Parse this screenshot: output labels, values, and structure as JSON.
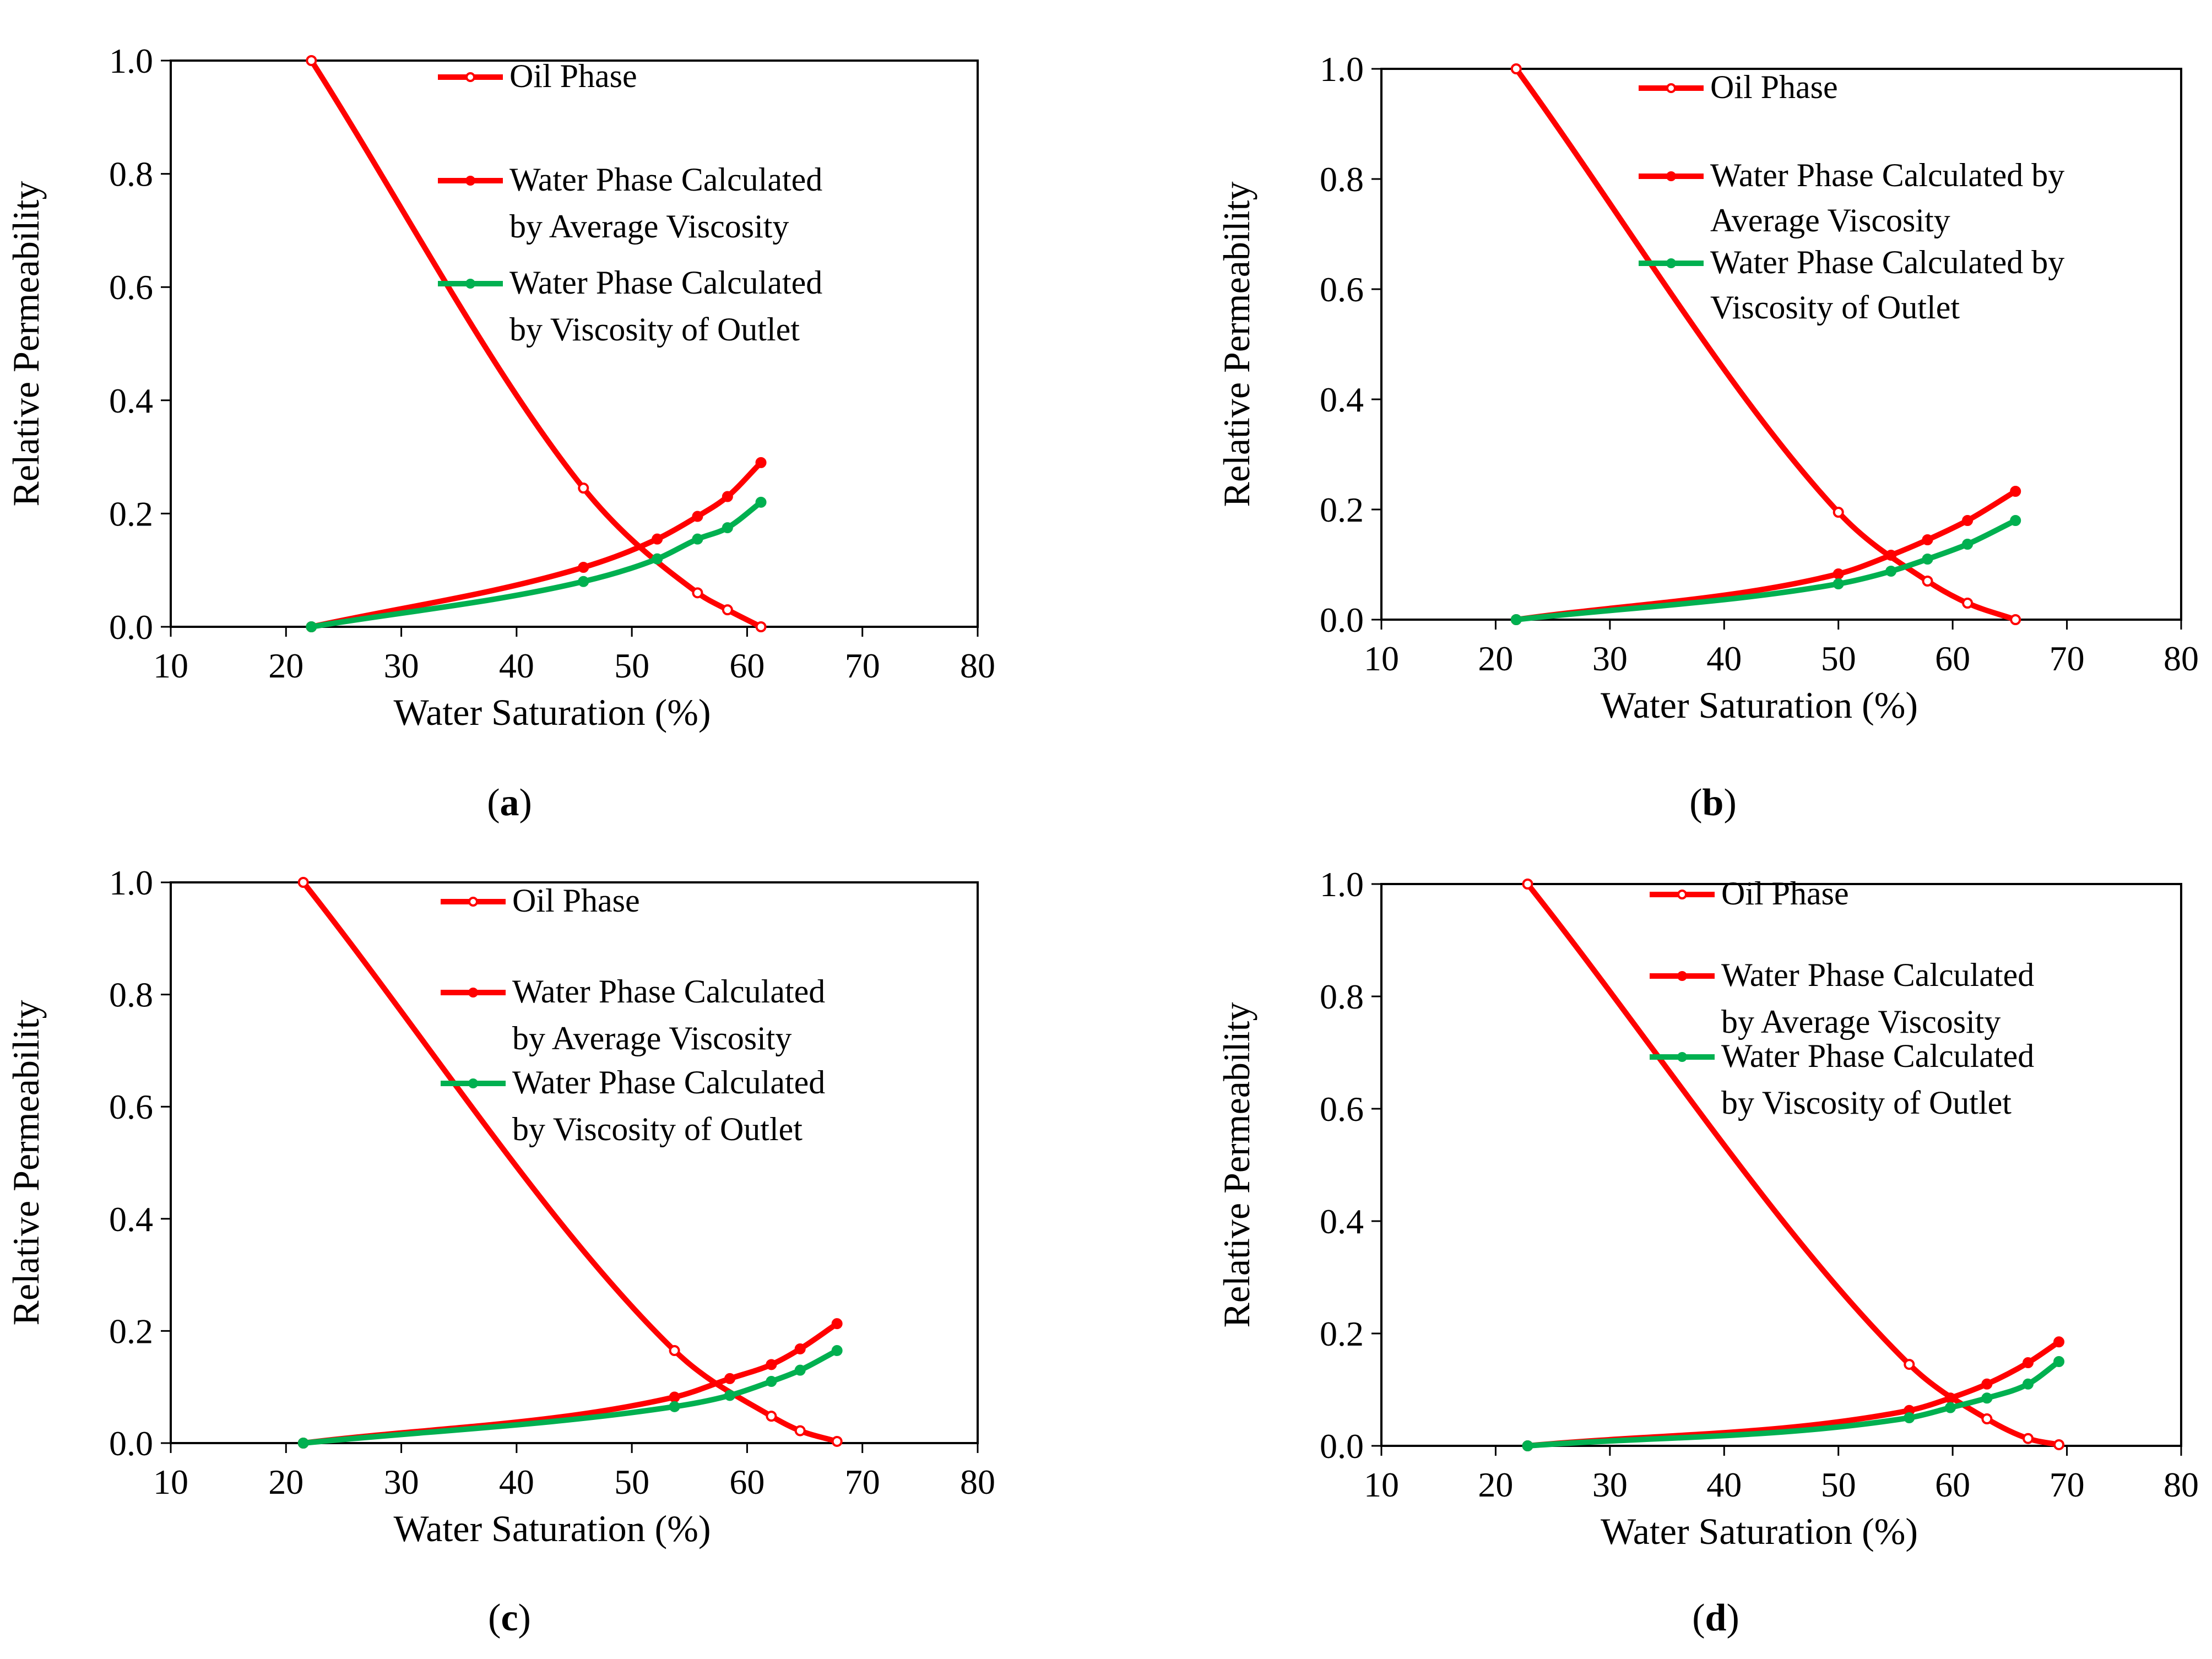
{
  "colors": {
    "oil": "#FF0000",
    "water_avg": "#FF0000",
    "water_outlet": "#00B050",
    "axis": "#000000"
  },
  "chart_data": [
    {
      "id": "a",
      "type": "line",
      "caption_letter": "a",
      "caption_open": "(",
      "caption_close": ")",
      "xlabel": "Water Saturation (%)",
      "ylabel": "Relative Permeability",
      "xlim": [
        10,
        80
      ],
      "ylim": [
        0,
        1.0
      ],
      "xticks": [
        "10",
        "20",
        "30",
        "40",
        "50",
        "60",
        "70",
        "80"
      ],
      "yticks": [
        "0.0",
        "0.2",
        "0.4",
        "0.6",
        "0.8",
        "1.0"
      ],
      "legend_position": "top-right",
      "series": [
        {
          "name": "Oil Phase",
          "legend_lines": [
            "Oil Phase"
          ],
          "marker": "open",
          "color": "#FF0000",
          "x": [
            22.2,
            45.8,
            55.7,
            58.3,
            61.2
          ],
          "y": [
            1.0,
            0.245,
            0.06,
            0.03,
            0.0
          ]
        },
        {
          "name": "Water Phase Calculated by Average Viscosity",
          "legend_lines": [
            "Water Phase Calculated",
            "by Average Viscosity"
          ],
          "marker": "filled",
          "color": "#FF0000",
          "x": [
            22.2,
            45.8,
            52.2,
            55.7,
            58.3,
            61.2
          ],
          "y": [
            0.0,
            0.105,
            0.155,
            0.195,
            0.23,
            0.29
          ]
        },
        {
          "name": "Water Phase Calculated by Viscosity of Outlet",
          "legend_lines": [
            "Water Phase Calculated",
            "by Viscosity of Outlet"
          ],
          "marker": "filled",
          "color": "#00B050",
          "x": [
            22.2,
            45.8,
            52.2,
            55.7,
            58.3,
            61.2
          ],
          "y": [
            0.0,
            0.08,
            0.12,
            0.155,
            0.175,
            0.22
          ]
        }
      ]
    },
    {
      "id": "b",
      "type": "line",
      "caption_letter": "b",
      "caption_open": "(",
      "caption_close": ")",
      "xlabel": "Water Saturation (%)",
      "ylabel": "Relative Permeability",
      "xlim": [
        10,
        80
      ],
      "ylim": [
        0,
        1.0
      ],
      "xticks": [
        "10",
        "20",
        "30",
        "40",
        "50",
        "60",
        "70",
        "80"
      ],
      "yticks": [
        "0.0",
        "0.2",
        "0.4",
        "0.6",
        "0.8",
        "1.0"
      ],
      "legend_position": "top-right",
      "series": [
        {
          "name": "Oil Phase",
          "legend_lines": [
            "Oil Phase"
          ],
          "marker": "open",
          "color": "#FF0000",
          "x": [
            21.8,
            50.0,
            57.8,
            61.3,
            65.5
          ],
          "y": [
            1.0,
            0.195,
            0.07,
            0.03,
            0.0
          ]
        },
        {
          "name": "Water Phase Calculated by Average Viscosity",
          "legend_lines": [
            "Water Phase Calculated by",
            "Average Viscosity"
          ],
          "marker": "filled",
          "color": "#FF0000",
          "x": [
            21.8,
            50.0,
            54.6,
            57.8,
            61.3,
            65.5
          ],
          "y": [
            0.0,
            0.083,
            0.117,
            0.145,
            0.18,
            0.233
          ]
        },
        {
          "name": "Water Phase Calculated by Viscosity of Outlet",
          "legend_lines": [
            "Water Phase Calculated by",
            "Viscosity of Outlet"
          ],
          "marker": "filled",
          "color": "#00B050",
          "x": [
            21.8,
            50.0,
            54.6,
            57.8,
            61.3,
            65.5
          ],
          "y": [
            0.0,
            0.065,
            0.088,
            0.11,
            0.137,
            0.18
          ]
        }
      ]
    },
    {
      "id": "c",
      "type": "line",
      "caption_letter": "c",
      "caption_open": "(",
      "caption_close": ")",
      "xlabel": "Water Saturation (%)",
      "ylabel": "Relative Permeability",
      "xlim": [
        10,
        80
      ],
      "ylim": [
        0,
        1.0
      ],
      "xticks": [
        "10",
        "20",
        "30",
        "40",
        "50",
        "60",
        "70",
        "80"
      ],
      "yticks": [
        "0.0",
        "0.2",
        "0.4",
        "0.6",
        "0.8",
        "1.0"
      ],
      "legend_position": "top-right",
      "series": [
        {
          "name": "Oil Phase",
          "legend_lines": [
            "Oil Phase"
          ],
          "marker": "open",
          "color": "#FF0000",
          "x": [
            21.5,
            53.7,
            62.1,
            64.6,
            67.8
          ],
          "y": [
            1.0,
            0.165,
            0.048,
            0.022,
            0.003
          ]
        },
        {
          "name": "Water Phase Calculated by Average Viscosity",
          "legend_lines": [
            "Water Phase Calculated",
            "by Average Viscosity"
          ],
          "marker": "filled",
          "color": "#FF0000",
          "x": [
            21.5,
            53.7,
            58.5,
            62.1,
            64.6,
            67.8
          ],
          "y": [
            0.0,
            0.082,
            0.115,
            0.14,
            0.168,
            0.213
          ]
        },
        {
          "name": "Water Phase Calculated by Viscosity of Outlet",
          "legend_lines": [
            "Water Phase Calculated",
            "by Viscosity of Outlet"
          ],
          "marker": "filled",
          "color": "#00B050",
          "x": [
            21.5,
            53.7,
            58.5,
            62.1,
            64.6,
            67.8
          ],
          "y": [
            0.0,
            0.065,
            0.085,
            0.11,
            0.13,
            0.165
          ]
        }
      ]
    },
    {
      "id": "d",
      "type": "line",
      "caption_letter": "d",
      "caption_open": "(",
      "caption_close": ")",
      "xlabel": "Water Saturation (%)",
      "ylabel": "Relative Permeability",
      "xlim": [
        10,
        80
      ],
      "ylim": [
        0,
        1.0
      ],
      "xticks": [
        "10",
        "20",
        "30",
        "40",
        "50",
        "60",
        "70",
        "80"
      ],
      "yticks": [
        "0.0",
        "0.2",
        "0.4",
        "0.6",
        "0.8",
        "1.0"
      ],
      "legend_position": "top-right",
      "series": [
        {
          "name": "Oil Phase",
          "legend_lines": [
            "Oil Phase"
          ],
          "marker": "open",
          "color": "#FF0000",
          "x": [
            22.8,
            56.2,
            63.0,
            66.6,
            69.3
          ],
          "y": [
            1.0,
            0.145,
            0.048,
            0.013,
            0.002
          ]
        },
        {
          "name": "Water Phase Calculated by Average Viscosity",
          "legend_lines": [
            "Water Phase Calculated",
            "by Average Viscosity"
          ],
          "marker": "filled",
          "color": "#FF0000",
          "x": [
            22.8,
            56.2,
            59.8,
            63.0,
            66.6,
            69.3
          ],
          "y": [
            0.0,
            0.063,
            0.085,
            0.11,
            0.148,
            0.185
          ]
        },
        {
          "name": "Water Phase Calculated by Viscosity of Outlet",
          "legend_lines": [
            "Water Phase Calculated",
            "by Viscosity of Outlet"
          ],
          "marker": "filled",
          "color": "#00B050",
          "x": [
            22.8,
            56.2,
            59.8,
            63.0,
            66.6,
            69.3
          ],
          "y": [
            0.0,
            0.05,
            0.068,
            0.085,
            0.11,
            0.15
          ]
        }
      ]
    }
  ]
}
